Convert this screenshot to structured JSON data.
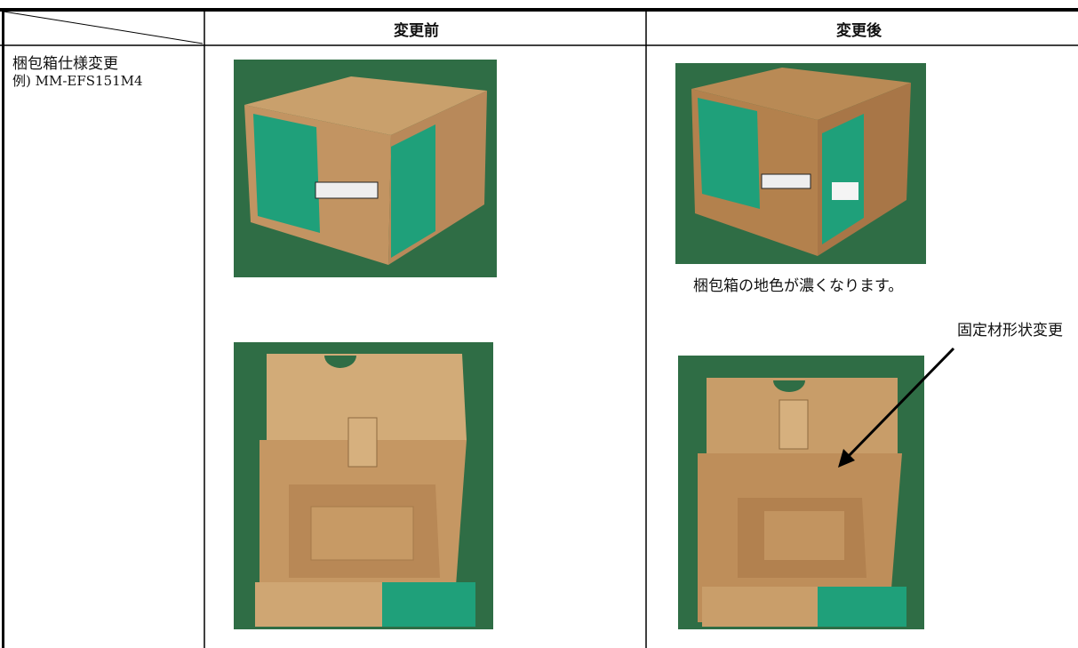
{
  "header": {
    "before": "変更前",
    "after": "変更後"
  },
  "row": {
    "title": "梱包箱仕様変更",
    "example": "例) MM-EFS151M4",
    "caption": "梱包箱の地色が濃くなります。",
    "annotation": "固定材形状変更"
  }
}
